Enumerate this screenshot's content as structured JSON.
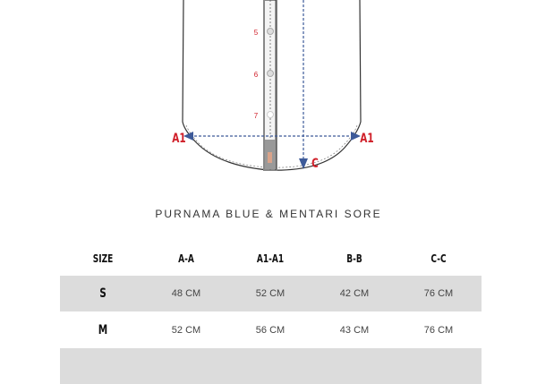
{
  "diagram": {
    "button_numbers": [
      "5",
      "6",
      "7"
    ],
    "labels": {
      "a1_left": "A1",
      "a1_right": "A1",
      "c": "C"
    },
    "colors": {
      "label_red": "#d0202a",
      "arrow_blue": "#3d5a99",
      "outline": "#333333"
    }
  },
  "title": "PURNAMA BLUE & MENTARI  SORE",
  "table": {
    "headers": [
      "SIZE",
      "A-A",
      "A1-A1",
      "B-B",
      "C-C"
    ],
    "rows": [
      {
        "size": "S",
        "values": [
          "48 CM",
          "52 CM",
          "42 CM",
          "76 CM"
        ]
      },
      {
        "size": "M",
        "values": [
          "52 CM",
          "56 CM",
          "43 CM",
          "76 CM"
        ]
      },
      {
        "size": "",
        "values": [
          "",
          "",
          "",
          ""
        ]
      }
    ],
    "shade_color": "#dcdcdc"
  }
}
